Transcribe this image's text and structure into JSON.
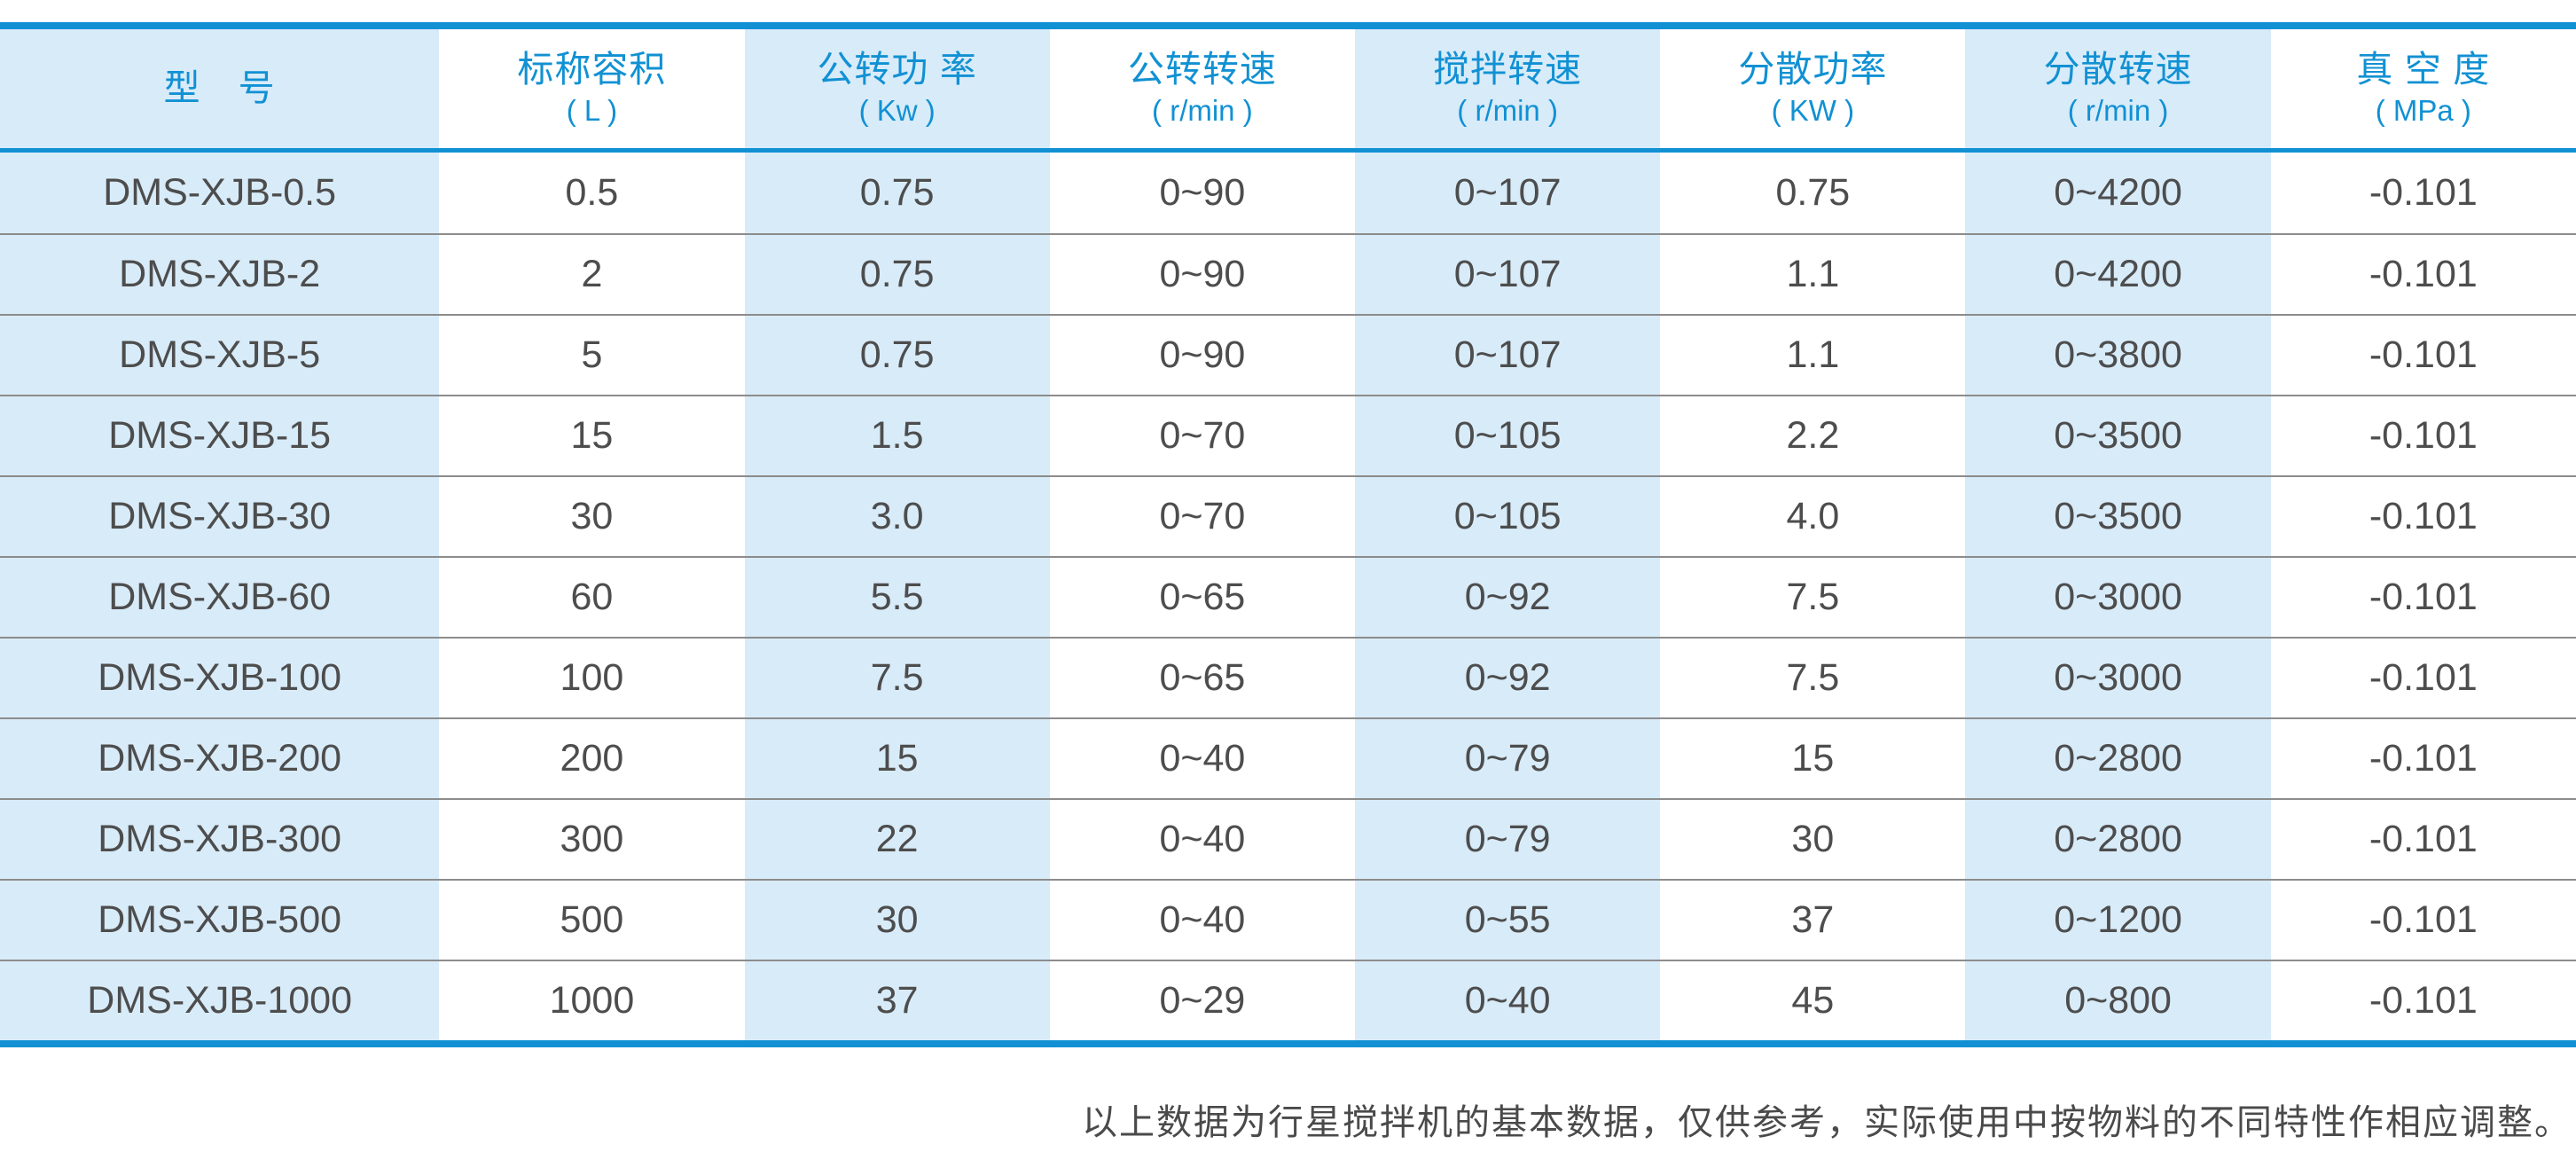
{
  "colors": {
    "accent": "#1191d3",
    "stripe": "#d8ebf9",
    "ink": "#4d4d4d",
    "divider": "#8c8c8c",
    "footnote_ink": "#4a4a4a"
  },
  "chart_data": {
    "type": "table",
    "columns": [
      {
        "title": "型　号",
        "unit": ""
      },
      {
        "title": "标称容积",
        "unit": "( L )"
      },
      {
        "title": "公转功 率",
        "unit": "( Kw )"
      },
      {
        "title": "公转转速",
        "unit": "( r/min )"
      },
      {
        "title": "搅拌转速",
        "unit": "( r/min )"
      },
      {
        "title": "分散功率",
        "unit": "( KW )"
      },
      {
        "title": "分散转速",
        "unit": "( r/min )"
      },
      {
        "title": "真 空 度",
        "unit": "( MPa )"
      }
    ],
    "rows": [
      [
        "DMS-XJB-0.5",
        "0.5",
        "0.75",
        "0~90",
        "0~107",
        "0.75",
        "0~4200",
        "-0.101"
      ],
      [
        "DMS-XJB-2",
        "2",
        "0.75",
        "0~90",
        "0~107",
        "1.1",
        "0~4200",
        "-0.101"
      ],
      [
        "DMS-XJB-5",
        "5",
        "0.75",
        "0~90",
        "0~107",
        "1.1",
        "0~3800",
        "-0.101"
      ],
      [
        "DMS-XJB-15",
        "15",
        "1.5",
        "0~70",
        "0~105",
        "2.2",
        "0~3500",
        "-0.101"
      ],
      [
        "DMS-XJB-30",
        "30",
        "3.0",
        "0~70",
        "0~105",
        "4.0",
        "0~3500",
        "-0.101"
      ],
      [
        "DMS-XJB-60",
        "60",
        "5.5",
        "0~65",
        "0~92",
        "7.5",
        "0~3000",
        "-0.101"
      ],
      [
        "DMS-XJB-100",
        "100",
        "7.5",
        "0~65",
        "0~92",
        "7.5",
        "0~3000",
        "-0.101"
      ],
      [
        "DMS-XJB-200",
        "200",
        "15",
        "0~40",
        "0~79",
        "15",
        "0~2800",
        "-0.101"
      ],
      [
        "DMS-XJB-300",
        "300",
        "22",
        "0~40",
        "0~79",
        "30",
        "0~2800",
        "-0.101"
      ],
      [
        "DMS-XJB-500",
        "500",
        "30",
        "0~40",
        "0~55",
        "37",
        "0~1200",
        "-0.101"
      ],
      [
        "DMS-XJB-1000",
        "1000",
        "37",
        "0~29",
        "0~40",
        "45",
        "0~800",
        "-0.101"
      ]
    ],
    "footnote": "以上数据为行星搅拌机的基本数据，仅供参考，实际使用中按物料的不同特性作相应调整。",
    "layout": {
      "striped_columns": [
        0,
        2,
        4,
        6
      ],
      "grid": "horizontal dividers only",
      "header_text_color": "accent blue",
      "borders": "thick blue top and bottom rules"
    }
  }
}
